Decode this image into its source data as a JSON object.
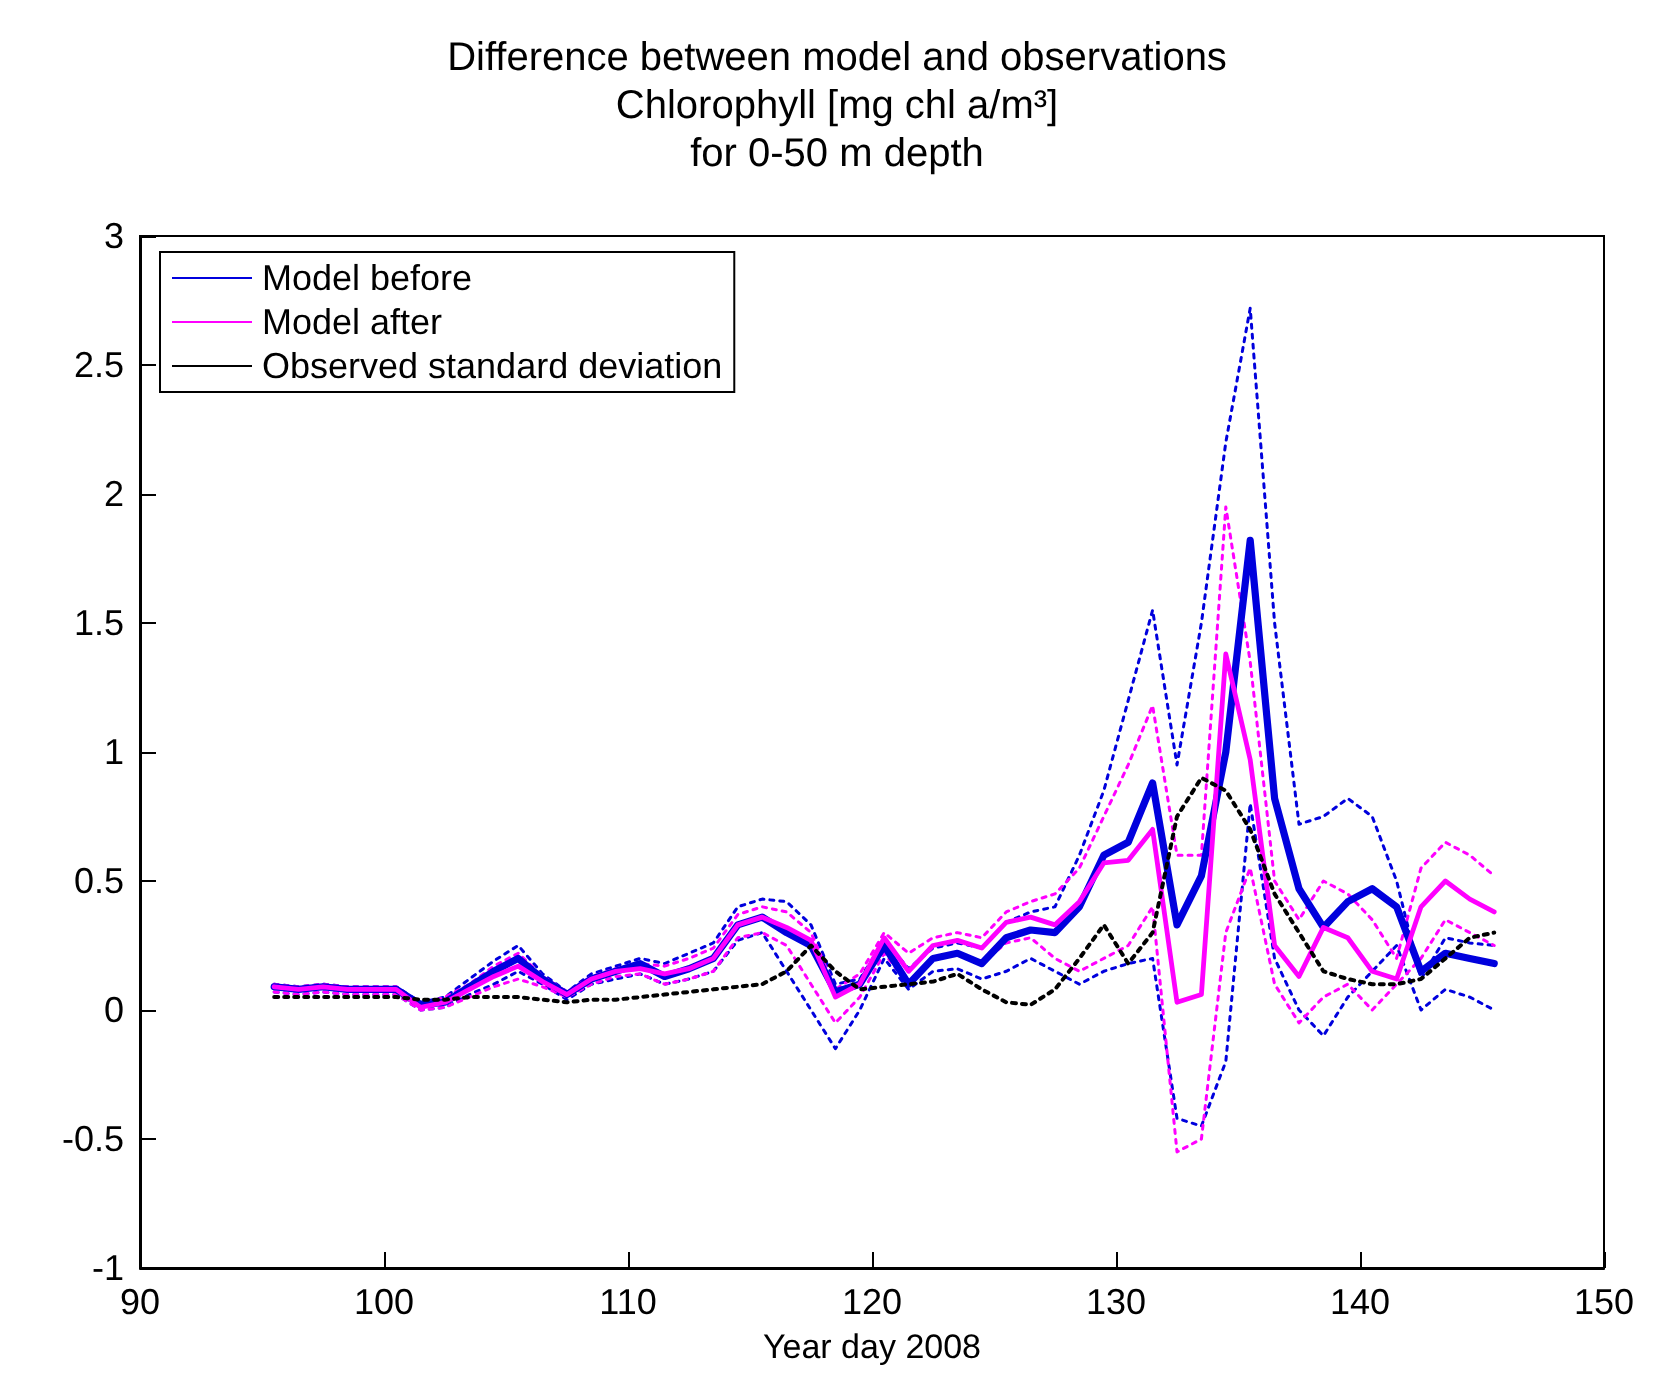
{
  "chart_data": {
    "type": "line",
    "title": "Difference between model and observations\nChlorophyll [mg chl a/m³]\nfor 0-50 m depth",
    "xlabel": "Year day 2008",
    "x": [
      95.5,
      96.5,
      97.5,
      98.5,
      99.5,
      100.5,
      101.5,
      102.5,
      103.5,
      104.5,
      105.5,
      106.5,
      107.5,
      108.5,
      109.5,
      110.5,
      111.5,
      112.5,
      113.5,
      114.5,
      115.5,
      116.5,
      117.5,
      118.5,
      119.5,
      120.5,
      121.5,
      122.5,
      123.5,
      124.5,
      125.5,
      126.5,
      127.5,
      128.5,
      129.5,
      130.5,
      131.5,
      132.5,
      133.5,
      134.5,
      135.5,
      136.5,
      137.5,
      138.5,
      139.5,
      140.5,
      141.5,
      142.5,
      143.5,
      144.5,
      145.5
    ],
    "xlim": [
      90,
      150
    ],
    "xticks": [
      90,
      100,
      110,
      120,
      130,
      140,
      150
    ],
    "ylim": [
      -1,
      3
    ],
    "yticks": [
      -1,
      -0.5,
      0,
      0.5,
      1,
      1.5,
      2,
      2.5,
      3
    ],
    "grid": false,
    "legend": "top left",
    "marker": "none",
    "series": [
      {
        "color": "#0000dd",
        "line_style": "dotted",
        "values": [
          0.1,
          0.09,
          0.1,
          0.09,
          0.09,
          0.09,
          0.03,
          0.05,
          0.12,
          0.19,
          0.25,
          0.14,
          0.07,
          0.14,
          0.17,
          0.2,
          0.18,
          0.22,
          0.26,
          0.4,
          0.43,
          0.42,
          0.33,
          0.1,
          0.12,
          0.27,
          0.16,
          0.24,
          0.26,
          0.24,
          0.34,
          0.38,
          0.4,
          0.6,
          0.85,
          1.2,
          1.55,
          0.95,
          1.5,
          2.2,
          2.72,
          1.5,
          0.72,
          0.75,
          0.82,
          0.75,
          0.5,
          0.12,
          0.28,
          0.26,
          0.25
        ]
      },
      {
        "color": "#0000dd",
        "line_style": "dotted",
        "values": [
          0.07,
          0.06,
          0.07,
          0.06,
          0.06,
          0.06,
          0.0,
          0.01,
          0.06,
          0.1,
          0.15,
          0.1,
          0.04,
          0.1,
          0.12,
          0.14,
          0.1,
          0.12,
          0.15,
          0.27,
          0.3,
          0.15,
          0.0,
          -0.15,
          0.0,
          0.2,
          0.08,
          0.15,
          0.16,
          0.12,
          0.15,
          0.2,
          0.15,
          0.1,
          0.15,
          0.18,
          0.2,
          -0.42,
          -0.45,
          -0.2,
          0.8,
          0.2,
          0.0,
          -0.1,
          0.05,
          0.15,
          0.25,
          0.0,
          0.08,
          0.05,
          0.0
        ]
      },
      {
        "color": "#ff00ff",
        "line_style": "dotted",
        "values": [
          0.1,
          0.09,
          0.1,
          0.09,
          0.09,
          0.09,
          0.02,
          0.05,
          0.1,
          0.17,
          0.22,
          0.13,
          0.07,
          0.13,
          0.16,
          0.18,
          0.17,
          0.2,
          0.24,
          0.37,
          0.4,
          0.38,
          0.3,
          0.08,
          0.14,
          0.3,
          0.22,
          0.28,
          0.3,
          0.28,
          0.38,
          0.42,
          0.45,
          0.55,
          0.75,
          0.95,
          1.18,
          0.6,
          0.6,
          1.95,
          1.35,
          0.5,
          0.35,
          0.5,
          0.45,
          0.35,
          0.2,
          0.55,
          0.65,
          0.6,
          0.52
        ]
      },
      {
        "color": "#ff00ff",
        "line_style": "dotted",
        "values": [
          0.07,
          0.06,
          0.07,
          0.06,
          0.06,
          0.06,
          0.0,
          0.01,
          0.05,
          0.09,
          0.12,
          0.09,
          0.05,
          0.1,
          0.13,
          0.14,
          0.1,
          0.12,
          0.15,
          0.28,
          0.3,
          0.25,
          0.1,
          -0.05,
          0.05,
          0.22,
          0.1,
          0.2,
          0.22,
          0.18,
          0.26,
          0.28,
          0.2,
          0.15,
          0.2,
          0.25,
          0.4,
          -0.55,
          -0.5,
          0.3,
          0.55,
          0.1,
          -0.05,
          0.05,
          0.1,
          0.0,
          0.1,
          0.2,
          0.35,
          0.3,
          0.25
        ]
      },
      {
        "name": "Model before",
        "color": "#0000dd",
        "line_style": "solid",
        "values": [
          0.09,
          0.08,
          0.09,
          0.08,
          0.08,
          0.08,
          0.02,
          0.03,
          0.09,
          0.15,
          0.2,
          0.12,
          0.06,
          0.12,
          0.15,
          0.18,
          0.13,
          0.16,
          0.2,
          0.33,
          0.36,
          0.3,
          0.25,
          0.07,
          0.1,
          0.25,
          0.1,
          0.2,
          0.22,
          0.18,
          0.28,
          0.31,
          0.3,
          0.4,
          0.6,
          0.65,
          0.88,
          0.33,
          0.52,
          1.0,
          1.82,
          0.82,
          0.47,
          0.32,
          0.42,
          0.47,
          0.4,
          0.15,
          0.22,
          0.2,
          0.18
        ]
      },
      {
        "name": "Model after",
        "color": "#ff00ff",
        "line_style": "solid",
        "values": [
          0.09,
          0.08,
          0.09,
          0.08,
          0.08,
          0.08,
          0.01,
          0.03,
          0.08,
          0.13,
          0.17,
          0.11,
          0.06,
          0.12,
          0.15,
          0.16,
          0.14,
          0.16,
          0.2,
          0.33,
          0.36,
          0.32,
          0.27,
          0.05,
          0.1,
          0.28,
          0.15,
          0.25,
          0.27,
          0.24,
          0.34,
          0.36,
          0.33,
          0.42,
          0.57,
          0.58,
          0.7,
          0.03,
          0.06,
          1.38,
          0.97,
          0.25,
          0.13,
          0.32,
          0.28,
          0.15,
          0.12,
          0.4,
          0.5,
          0.43,
          0.38
        ]
      },
      {
        "name": "Observed standard deviation",
        "color": "#000000",
        "line_style": "dotted",
        "values": [
          0.05,
          0.05,
          0.05,
          0.05,
          0.05,
          0.05,
          0.04,
          0.04,
          0.05,
          0.05,
          0.05,
          0.04,
          0.03,
          0.04,
          0.04,
          0.05,
          0.06,
          0.07,
          0.08,
          0.09,
          0.1,
          0.15,
          0.25,
          0.15,
          0.08,
          0.09,
          0.1,
          0.11,
          0.14,
          0.08,
          0.03,
          0.02,
          0.08,
          0.2,
          0.33,
          0.18,
          0.3,
          0.75,
          0.9,
          0.85,
          0.7,
          0.45,
          0.3,
          0.15,
          0.12,
          0.1,
          0.1,
          0.12,
          0.2,
          0.28,
          0.3
        ]
      }
    ]
  }
}
